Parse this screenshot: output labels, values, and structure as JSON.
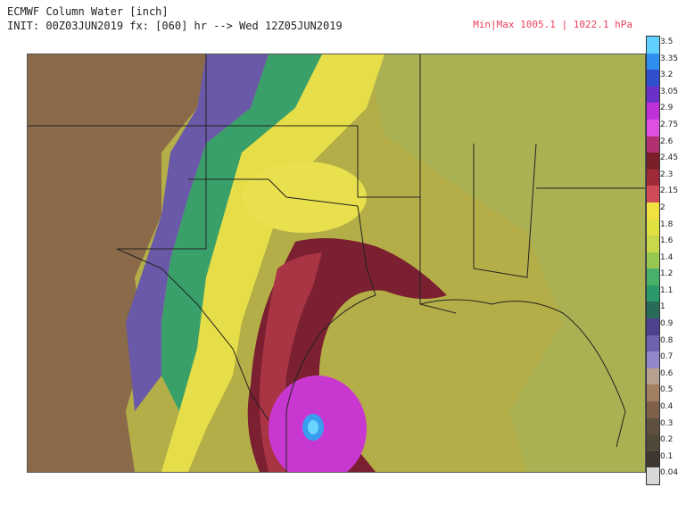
{
  "header": {
    "line1": "ECMWF Column Water [inch]",
    "line2": "INIT: 00Z03JUN2019 fx: [060] hr --> Wed 12Z05JUN2019",
    "minmax": "Min|Max 1005.1 | 1022.1 hPa"
  },
  "colorbar": {
    "labels": [
      "3.5",
      "3.35",
      "3.2",
      "3.05",
      "2.9",
      "2.75",
      "2.6",
      "2.45",
      "2.3",
      "2.15",
      "2",
      "1.8",
      "1.6",
      "1.4",
      "1.2",
      "1.1",
      "1",
      "0.9",
      "0.8",
      "0.7",
      "0.6",
      "0.5",
      "0.4",
      "0.3",
      "0.2",
      "0.1",
      "0.04"
    ],
    "colors": [
      "#5fd0ff",
      "#2f8ff0",
      "#3050d0",
      "#6a30c8",
      "#c030d8",
      "#e050e0",
      "#b03070",
      "#7a1f2a",
      "#a02a38",
      "#d04a5a",
      "#f0e040",
      "#e0e040",
      "#c8d84a",
      "#98c850",
      "#48b068",
      "#2a9a6a",
      "#2a6a58",
      "#504090",
      "#7060b0",
      "#9088c8",
      "#b8a090",
      "#a08060",
      "#806048",
      "#605040",
      "#504838",
      "#403830",
      "#d8d8d8"
    ]
  }
}
